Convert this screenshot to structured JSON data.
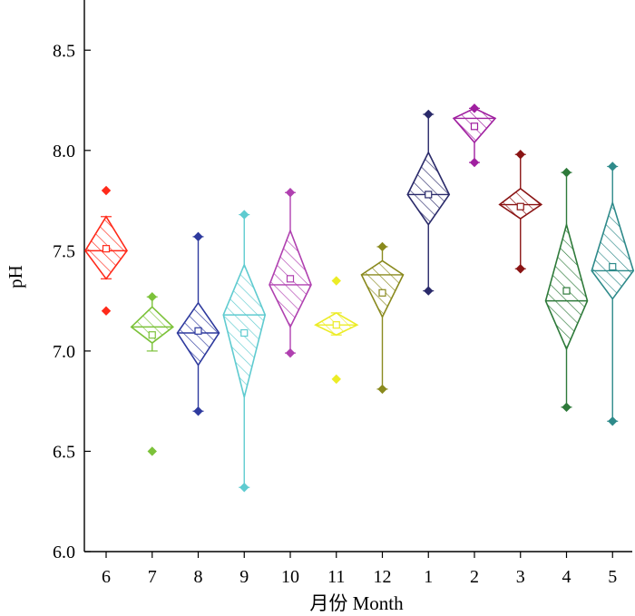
{
  "chart_data": {
    "type": "diamond-box",
    "xlabel": "月份 Month",
    "ylabel": "pH",
    "ylim": [
      6.0,
      8.75
    ],
    "yticks": [
      6.0,
      6.5,
      7.0,
      7.5,
      8.0,
      8.5
    ],
    "ytick_labels": [
      "6.0",
      "6.5",
      "7.0",
      "7.5",
      "8.0",
      "8.5"
    ],
    "grid": false,
    "legend": "none",
    "categories": [
      "6",
      "7",
      "8",
      "9",
      "10",
      "11",
      "12",
      "1",
      "2",
      "3",
      "4",
      "5"
    ],
    "series": [
      {
        "category": "6",
        "color": "#ff2a1a",
        "whisker_low": 7.36,
        "q1": 7.36,
        "median": 7.5,
        "q3": 7.67,
        "whisker_high": 7.67,
        "mean": 7.51,
        "min": 7.2,
        "max": 7.8
      },
      {
        "category": "7",
        "color": "#7cc23a",
        "whisker_low": 7.0,
        "q1": 7.04,
        "median": 7.12,
        "q3": 7.22,
        "whisker_high": 7.27,
        "mean": 7.08,
        "min": 6.5,
        "max": 7.27
      },
      {
        "category": "8",
        "color": "#2e3a9e",
        "whisker_low": 6.7,
        "q1": 6.93,
        "median": 7.09,
        "q3": 7.24,
        "whisker_high": 7.57,
        "mean": 7.1,
        "min": 6.7,
        "max": 7.57
      },
      {
        "category": "9",
        "color": "#5fcbd0",
        "whisker_low": 6.32,
        "q1": 6.77,
        "median": 7.18,
        "q3": 7.43,
        "whisker_high": 7.68,
        "mean": 7.09,
        "min": 6.32,
        "max": 7.68
      },
      {
        "category": "10",
        "color": "#b040b0",
        "whisker_low": 6.99,
        "q1": 7.12,
        "median": 7.33,
        "q3": 7.6,
        "whisker_high": 7.79,
        "mean": 7.36,
        "min": 6.99,
        "max": 7.79
      },
      {
        "category": "11",
        "color": "#ecec26",
        "whisker_low": 7.08,
        "q1": 7.08,
        "median": 7.13,
        "q3": 7.19,
        "whisker_high": 7.19,
        "mean": 7.13,
        "min": 6.86,
        "max": 7.35
      },
      {
        "category": "12",
        "color": "#8a8a1e",
        "whisker_low": 6.81,
        "q1": 7.17,
        "median": 7.38,
        "q3": 7.45,
        "whisker_high": 7.52,
        "mean": 7.29,
        "min": 6.81,
        "max": 7.52
      },
      {
        "category": "1",
        "color": "#2a2a6a",
        "whisker_low": 7.3,
        "q1": 7.63,
        "median": 7.78,
        "q3": 7.99,
        "whisker_high": 8.18,
        "mean": 7.78,
        "min": 7.3,
        "max": 8.18
      },
      {
        "category": "2",
        "color": "#a020a0",
        "whisker_low": 7.94,
        "q1": 8.04,
        "median": 8.16,
        "q3": 8.21,
        "whisker_high": 8.21,
        "mean": 8.12,
        "min": 7.94,
        "max": 8.21
      },
      {
        "category": "3",
        "color": "#8a1414",
        "whisker_low": 7.41,
        "q1": 7.66,
        "median": 7.73,
        "q3": 7.81,
        "whisker_high": 7.98,
        "mean": 7.72,
        "min": 7.41,
        "max": 7.98
      },
      {
        "category": "4",
        "color": "#2e7a3a",
        "whisker_low": 6.72,
        "q1": 7.01,
        "median": 7.25,
        "q3": 7.63,
        "whisker_high": 7.89,
        "mean": 7.3,
        "min": 6.72,
        "max": 7.89
      },
      {
        "category": "5",
        "color": "#2e8a8a",
        "whisker_low": 6.65,
        "q1": 7.26,
        "median": 7.4,
        "q3": 7.74,
        "whisker_high": 7.92,
        "mean": 7.42,
        "min": 6.65,
        "max": 7.92
      }
    ]
  }
}
